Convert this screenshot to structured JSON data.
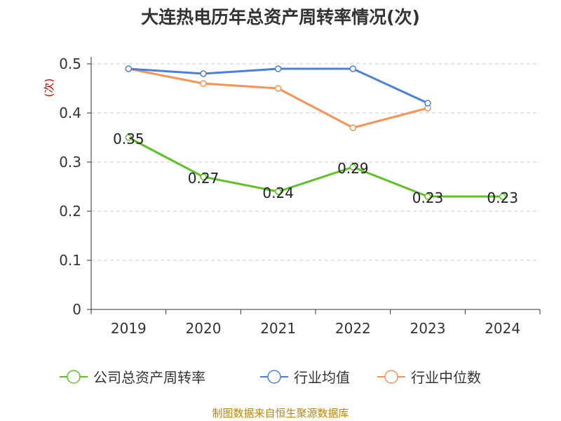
{
  "chart_data": {
    "type": "line",
    "title": "大连热电历年总资产周转率情况(次)",
    "ylabel": "(次)",
    "xlabel": "",
    "categories": [
      "2019",
      "2020",
      "2021",
      "2022",
      "2023",
      "2024"
    ],
    "ylim": [
      0,
      0.5
    ],
    "yticks": [
      "0",
      "0.1",
      "0.2",
      "0.3",
      "0.4",
      "0.5"
    ],
    "grid": true,
    "legend_position": "bottom",
    "series": [
      {
        "name": "公司总资产周转率",
        "color": "#5ec227",
        "values": [
          0.35,
          0.27,
          0.24,
          0.29,
          0.23,
          0.23
        ],
        "labels": [
          "0.35",
          "0.27",
          "0.24",
          "0.29",
          "0.23",
          "0.23"
        ]
      },
      {
        "name": "行业均值",
        "color": "#4a7fdc",
        "values": [
          0.49,
          0.48,
          0.49,
          0.49,
          0.42,
          null
        ]
      },
      {
        "name": "行业中位数",
        "color": "#f79255",
        "values": [
          0.49,
          0.46,
          0.45,
          0.37,
          0.41,
          null
        ]
      }
    ]
  },
  "source": "制图数据来自恒生聚源数据库"
}
